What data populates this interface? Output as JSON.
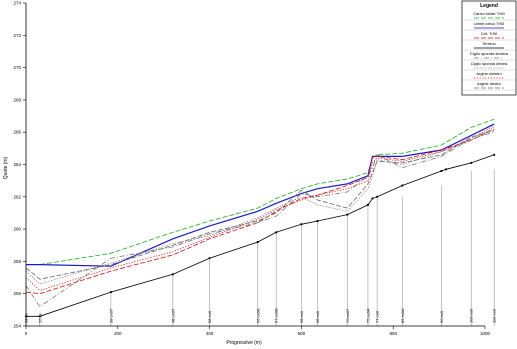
{
  "chart_data": {
    "type": "line",
    "title": "",
    "xlabel": "Progressive (m)",
    "ylabel": "Quote (m)",
    "xlim": [
      0,
      1000
    ],
    "ylim": [
      254,
      274
    ],
    "x_ticks": [
      0,
      200,
      400,
      600,
      800,
      1000
    ],
    "x_tick_labels": [
      "0",
      "200",
      "400",
      "600",
      "800",
      "1000"
    ],
    "y_ticks": [
      254,
      256,
      258,
      260,
      262,
      264,
      266,
      268,
      270,
      272,
      274
    ],
    "y_tick_labels": [
      "254",
      "256",
      "258",
      "260",
      "262",
      "264",
      "266",
      "268",
      "270",
      "272",
      "274"
    ],
    "grid": false,
    "legend_position": "top-right",
    "legend": {
      "title": "Legend",
      "entries": [
        {
          "label": "Carico totale Tr50",
          "color": "#22aa22",
          "style": "dashed"
        },
        {
          "label": "Limite idrico Tr50",
          "color": "#1a1acc",
          "style": "solid"
        },
        {
          "label": "Crit. Tr50",
          "color": "#cc1111",
          "style": "dashed"
        },
        {
          "label": "Terreno",
          "color": "#000000",
          "style": "solid"
        },
        {
          "label": "Ciglio sponda sinistra",
          "color": "#777777",
          "style": "dashdot"
        },
        {
          "label": "Ciglio sponda destra",
          "color": "#777777",
          "style": "dotted"
        },
        {
          "label": "Argine sinistro",
          "color": "#cc1111",
          "style": "dotted"
        },
        {
          "label": "Argine destro",
          "color": "#666666",
          "style": "dashed"
        }
      ]
    },
    "stations": [
      {
        "x": 0,
        "label": "13 ex"
      },
      {
        "x": 30,
        "label": "26 ex"
      },
      {
        "x": 185,
        "label": "38 ex07"
      },
      {
        "x": 320,
        "label": "48 ex07"
      },
      {
        "x": 400,
        "label": "58 ex0"
      },
      {
        "x": 505,
        "label": "66 ex0A"
      },
      {
        "x": 545,
        "label": "67 ex0B"
      },
      {
        "x": 600,
        "label": "68 ex0"
      },
      {
        "x": 635,
        "label": "68 ex0"
      },
      {
        "x": 700,
        "label": "70 ex07"
      },
      {
        "x": 745,
        "label": "75 ex0A"
      },
      {
        "x": 765,
        "label": "77 ex0"
      },
      {
        "x": 820,
        "label": "85 ex0A"
      },
      {
        "x": 905,
        "label": "90 ex0"
      },
      {
        "x": 970,
        "label": "100 ex0"
      },
      {
        "x": 1020,
        "label": "110 ex0"
      }
    ],
    "series": [
      {
        "name": "Carico totale Tr50",
        "color": "#22aa22",
        "style": "dashed",
        "x": [
          0,
          30,
          185,
          320,
          400,
          505,
          545,
          600,
          635,
          700,
          745,
          755,
          765,
          820,
          905,
          970,
          1020
        ],
        "y": [
          257.8,
          257.8,
          258.5,
          259.8,
          260.5,
          261.3,
          261.9,
          262.5,
          262.8,
          263.1,
          263.5,
          264.4,
          264.6,
          264.7,
          265.2,
          266.3,
          266.8
        ]
      },
      {
        "name": "Limite idrico Tr50",
        "color": "#1a1acc",
        "style": "solid",
        "x": [
          0,
          30,
          185,
          320,
          400,
          505,
          545,
          600,
          635,
          700,
          745,
          755,
          765,
          820,
          905,
          970,
          1020
        ],
        "y": [
          257.8,
          257.8,
          257.7,
          259.4,
          260.2,
          261.1,
          261.6,
          262.2,
          262.5,
          262.8,
          263.3,
          264.5,
          264.5,
          264.5,
          264.9,
          265.8,
          266.5
        ]
      },
      {
        "name": "Crit. Tr50",
        "color": "#cc1111",
        "style": "dashed",
        "x": [
          0,
          30,
          185,
          320,
          400,
          505,
          545,
          600,
          635,
          700,
          745,
          755,
          765,
          820,
          905,
          970,
          1020
        ],
        "y": [
          256.1,
          256.0,
          257.4,
          258.4,
          259.4,
          260.4,
          261.1,
          261.9,
          262.1,
          262.7,
          263.2,
          264.5,
          264.5,
          264.3,
          264.9,
          265.5,
          266.2
        ]
      },
      {
        "name": "Terreno",
        "color": "#000000",
        "style": "solid",
        "x": [
          0,
          30,
          185,
          320,
          400,
          505,
          545,
          600,
          635,
          700,
          745,
          755,
          765,
          820,
          905,
          915,
          970,
          1020
        ],
        "y": [
          254.6,
          254.6,
          256.1,
          257.2,
          258.2,
          259.2,
          259.8,
          260.3,
          260.5,
          260.9,
          261.5,
          261.9,
          262.0,
          262.7,
          263.6,
          263.7,
          264.1,
          264.6
        ]
      },
      {
        "name": "Ciglio sponda sinistra",
        "color": "#777777",
        "style": "dashdot",
        "x": [
          0,
          30,
          185,
          320,
          400,
          505,
          545,
          600,
          635,
          700,
          745,
          755,
          765,
          820,
          905,
          970,
          1020
        ],
        "y": [
          256.5,
          255.2,
          258.2,
          258.9,
          259.7,
          260.4,
          260.8,
          262.2,
          262.0,
          262.3,
          263.3,
          263.8,
          264.6,
          263.8,
          264.5,
          265.6,
          266.0
        ]
      },
      {
        "name": "Ciglio sponda destra",
        "color": "#777777",
        "style": "dotted",
        "x": [
          0,
          30,
          185,
          320,
          400,
          505,
          545,
          600,
          635,
          700,
          745,
          755,
          765,
          820,
          905,
          970,
          1020
        ],
        "y": [
          257.4,
          256.6,
          257.9,
          259.1,
          259.6,
          260.7,
          261.3,
          262.0,
          261.5,
          261.1,
          262.5,
          263.3,
          264.3,
          264.0,
          264.8,
          265.5,
          266.3
        ]
      },
      {
        "name": "Argine sinistro",
        "color": "#cc1111",
        "style": "dotted",
        "x": [
          0,
          30,
          185,
          320,
          400,
          505,
          545,
          600,
          635,
          700,
          745,
          755,
          765,
          820,
          905,
          970,
          1020
        ],
        "y": [
          257.0,
          256.2,
          257.6,
          258.6,
          259.5,
          260.6,
          261.2,
          261.8,
          262.1,
          262.5,
          263.0,
          264.1,
          264.4,
          264.2,
          264.8,
          265.6,
          266.4
        ]
      },
      {
        "name": "Argine destro",
        "color": "#666666",
        "style": "dashed",
        "x": [
          0,
          30,
          185,
          320,
          400,
          505,
          545,
          600,
          635,
          700,
          745,
          755,
          765,
          820,
          905,
          970,
          1020
        ],
        "y": [
          257.6,
          256.9,
          257.8,
          259.0,
          259.8,
          260.5,
          261.0,
          262.4,
          261.8,
          261.3,
          262.8,
          263.5,
          264.2,
          264.1,
          264.6,
          265.7,
          266.1
        ]
      }
    ]
  }
}
